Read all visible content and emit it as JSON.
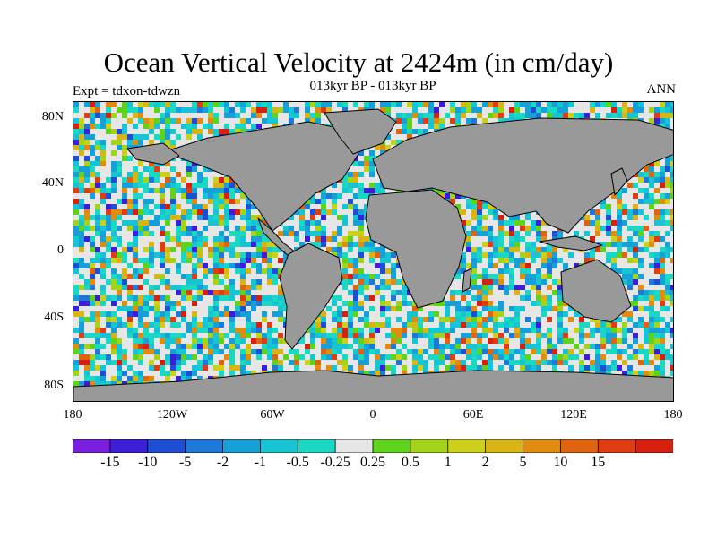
{
  "title": "Ocean Vertical Velocity at 2424m (in cm/day)",
  "subtitle": "013kyr BP - 013kyr BP",
  "left_label": "Expt = tdxon-tdwzn",
  "right_label": "ANN",
  "map": {
    "lat_labels": [
      "80N",
      "40N",
      "0",
      "40S",
      "80S"
    ],
    "lon_labels": [
      "180",
      "120W",
      "60W",
      "0",
      "60E",
      "120E",
      "180"
    ],
    "land_color": "#999999",
    "near_zero_color": "#e6e6e6"
  },
  "colorbar": {
    "colors": [
      "#7a1fe0",
      "#3d1ed8",
      "#1c4fd4",
      "#1e78d8",
      "#15a0d8",
      "#17c4d4",
      "#1ad8c4",
      "#e6e6e6",
      "#5fd21c",
      "#a4d41a",
      "#cdd01a",
      "#d8b414",
      "#e08c10",
      "#e06410",
      "#e03c14",
      "#d8200e"
    ],
    "labels": [
      "-15",
      "-10",
      "-5",
      "-2",
      "-1",
      "-0.5",
      "-0.25",
      "0.25",
      "0.5",
      "1",
      "2",
      "5",
      "10",
      "15"
    ]
  }
}
